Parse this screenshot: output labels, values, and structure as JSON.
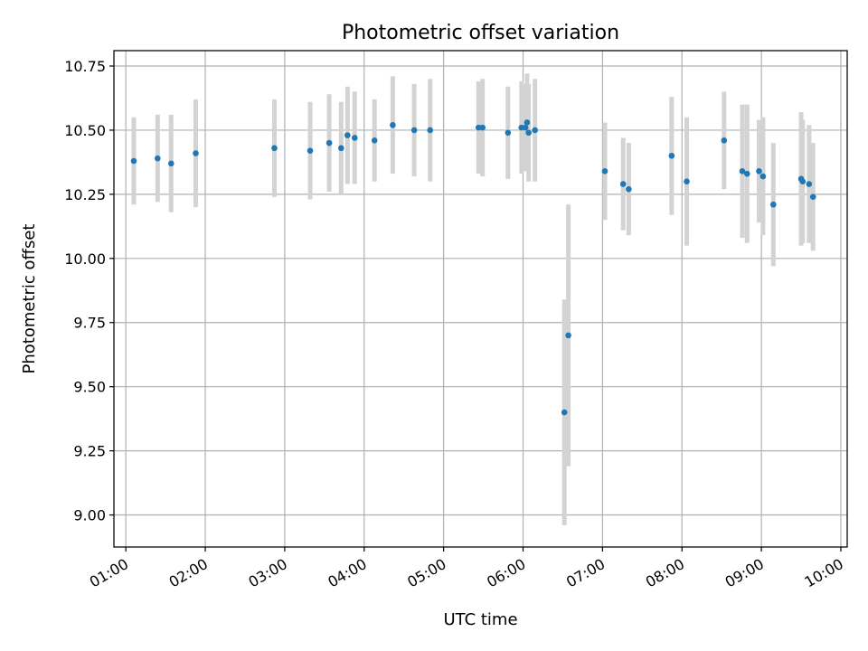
{
  "chart_data": {
    "type": "scatter",
    "title": "Photometric offset variation",
    "xlabel": "UTC time",
    "ylabel": "Photometric offset",
    "x_unit": "hours UTC",
    "xlim": [
      0.85,
      10.08
    ],
    "ylim": [
      8.875,
      10.81
    ],
    "x_ticks": [
      {
        "value": 1,
        "label": "01:00"
      },
      {
        "value": 2,
        "label": "02:00"
      },
      {
        "value": 3,
        "label": "03:00"
      },
      {
        "value": 4,
        "label": "04:00"
      },
      {
        "value": 5,
        "label": "05:00"
      },
      {
        "value": 6,
        "label": "06:00"
      },
      {
        "value": 7,
        "label": "07:00"
      },
      {
        "value": 8,
        "label": "08:00"
      },
      {
        "value": 9,
        "label": "09:00"
      },
      {
        "value": 10,
        "label": "10:00"
      }
    ],
    "y_ticks": [
      {
        "value": 9.0,
        "label": "9.00"
      },
      {
        "value": 9.25,
        "label": "9.25"
      },
      {
        "value": 9.5,
        "label": "9.50"
      },
      {
        "value": 9.75,
        "label": "9.75"
      },
      {
        "value": 10.0,
        "label": "10.00"
      },
      {
        "value": 10.25,
        "label": "10.25"
      },
      {
        "value": 10.5,
        "label": "10.50"
      },
      {
        "value": 10.75,
        "label": "10.75"
      }
    ],
    "grid": true,
    "point_color": "#1f77b4",
    "errorbar_color": "#d3d3d3",
    "x_tick_rotation": 30,
    "points": [
      {
        "x": 1.1,
        "y": 10.38,
        "err": 0.17
      },
      {
        "x": 1.4,
        "y": 10.39,
        "err": 0.17
      },
      {
        "x": 1.57,
        "y": 10.37,
        "err": 0.19
      },
      {
        "x": 1.88,
        "y": 10.41,
        "err": 0.21
      },
      {
        "x": 2.87,
        "y": 10.43,
        "err": 0.19
      },
      {
        "x": 3.32,
        "y": 10.42,
        "err": 0.19
      },
      {
        "x": 3.56,
        "y": 10.45,
        "err": 0.19
      },
      {
        "x": 3.71,
        "y": 10.43,
        "err": 0.18
      },
      {
        "x": 3.79,
        "y": 10.48,
        "err": 0.19
      },
      {
        "x": 3.88,
        "y": 10.47,
        "err": 0.18
      },
      {
        "x": 4.13,
        "y": 10.46,
        "err": 0.16
      },
      {
        "x": 4.36,
        "y": 10.52,
        "err": 0.19
      },
      {
        "x": 4.63,
        "y": 10.5,
        "err": 0.18
      },
      {
        "x": 4.83,
        "y": 10.5,
        "err": 0.2
      },
      {
        "x": 5.44,
        "y": 10.51,
        "err": 0.18
      },
      {
        "x": 5.49,
        "y": 10.51,
        "err": 0.19
      },
      {
        "x": 5.81,
        "y": 10.49,
        "err": 0.18
      },
      {
        "x": 5.98,
        "y": 10.51,
        "err": 0.18
      },
      {
        "x": 6.03,
        "y": 10.51,
        "err": 0.17
      },
      {
        "x": 6.05,
        "y": 10.53,
        "err": 0.19
      },
      {
        "x": 6.07,
        "y": 10.49,
        "err": 0.19
      },
      {
        "x": 6.15,
        "y": 10.5,
        "err": 0.2
      },
      {
        "x": 6.52,
        "y": 9.4,
        "err": 0.44
      },
      {
        "x": 6.57,
        "y": 9.7,
        "err": 0.51
      },
      {
        "x": 7.03,
        "y": 10.34,
        "err": 0.19
      },
      {
        "x": 7.26,
        "y": 10.29,
        "err": 0.18
      },
      {
        "x": 7.33,
        "y": 10.27,
        "err": 0.18
      },
      {
        "x": 7.87,
        "y": 10.4,
        "err": 0.23
      },
      {
        "x": 8.06,
        "y": 10.3,
        "err": 0.25
      },
      {
        "x": 8.53,
        "y": 10.46,
        "err": 0.19
      },
      {
        "x": 8.76,
        "y": 10.34,
        "err": 0.26
      },
      {
        "x": 8.82,
        "y": 10.33,
        "err": 0.27
      },
      {
        "x": 8.97,
        "y": 10.34,
        "err": 0.2
      },
      {
        "x": 9.02,
        "y": 10.32,
        "err": 0.23
      },
      {
        "x": 9.15,
        "y": 10.21,
        "err": 0.24
      },
      {
        "x": 9.5,
        "y": 10.31,
        "err": 0.26
      },
      {
        "x": 9.52,
        "y": 10.3,
        "err": 0.24
      },
      {
        "x": 9.6,
        "y": 10.29,
        "err": 0.23
      },
      {
        "x": 9.65,
        "y": 10.24,
        "err": 0.21
      }
    ]
  }
}
